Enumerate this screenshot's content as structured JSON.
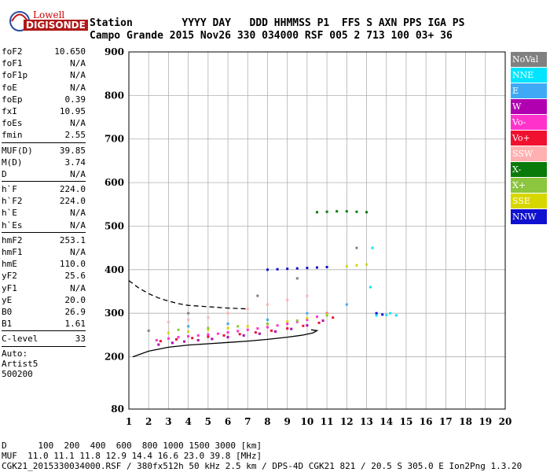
{
  "logo": {
    "line1": "Lowell",
    "line2": "DIGISONDE"
  },
  "header": {
    "row1": "Station        YYYY DAY   DDD HHMMSS P1  FFS S AXN PPS IGA PS",
    "row2": "Campo Grande 2015 Nov26 330 034000 RSF 005 2 713 100 03+ 36"
  },
  "params_group1": [
    {
      "label": "foF2",
      "value": "10.650"
    },
    {
      "label": "foF1",
      "value": "N/A"
    },
    {
      "label": "foF1p",
      "value": "N/A"
    },
    {
      "label": "foE",
      "value": "N/A"
    },
    {
      "label": "foEp",
      "value": "0.39"
    },
    {
      "label": "fxI",
      "value": "10.95"
    },
    {
      "label": "foEs",
      "value": "N/A"
    },
    {
      "label": "fmin",
      "value": "2.55"
    }
  ],
  "params_group2": [
    {
      "label": "MUF(D)",
      "value": "39.85"
    },
    {
      "label": "M(D)",
      "value": "3.74"
    },
    {
      "label": "D",
      "value": "N/A"
    }
  ],
  "params_group3": [
    {
      "label": "h`F",
      "value": "224.0"
    },
    {
      "label": "h`F2",
      "value": "224.0"
    },
    {
      "label": "h`E",
      "value": "N/A"
    },
    {
      "label": "h`Es",
      "value": "N/A"
    }
  ],
  "params_group4": [
    {
      "label": "hmF2",
      "value": "253.1"
    },
    {
      "label": "hmF1",
      "value": "N/A"
    },
    {
      "label": "hmE",
      "value": "110.0"
    },
    {
      "label": "yF2",
      "value": "25.6"
    },
    {
      "label": "yF1",
      "value": "N/A"
    },
    {
      "label": "yE",
      "value": "20.0"
    },
    {
      "label": "B0",
      "value": "26.9"
    },
    {
      "label": "B1",
      "value": "1.61"
    }
  ],
  "clevel": {
    "label": "C-level",
    "value": "33"
  },
  "auto": {
    "line1": "Auto:",
    "line2": "Artist5",
    "line3": "500200"
  },
  "legend": [
    {
      "label": "NoVal",
      "color": "#808080"
    },
    {
      "label": "NNE",
      "color": "#00e5ff"
    },
    {
      "label": "E",
      "color": "#3fa9f5"
    },
    {
      "label": "W",
      "color": "#b000b0"
    },
    {
      "label": "Vo-",
      "color": "#ff33cc"
    },
    {
      "label": "Vo+",
      "color": "#f01030"
    },
    {
      "label": "SSW",
      "color": "#ffb0b0"
    },
    {
      "label": "X-",
      "color": "#0a7a0a"
    },
    {
      "label": "X+",
      "color": "#8cc63f"
    },
    {
      "label": "SSE",
      "color": "#d7d700"
    },
    {
      "label": "NNW",
      "color": "#1010d0"
    }
  ],
  "footer": {
    "line1": "D      100  200  400  600  800 1000 1500 3000 [km]",
    "line2": "MUF  11.0 11.1 11.8 12.9 14.4 16.6 23.0 39.8 [MHz]",
    "line3": "CGK21_2015330034000.RSF / 380fx512h 50 kHz 2.5 km / DPS-4D CGK21 821 / 20.5 S 305.0 E Ion2Png 1.3.20"
  },
  "chart_data": {
    "type": "scatter",
    "title": "",
    "xlabel": "",
    "ylabel": "",
    "xlim": [
      1,
      20
    ],
    "ylim": [
      80,
      900
    ],
    "x_ticks": [
      1,
      2,
      3,
      4,
      5,
      6,
      7,
      8,
      9,
      10,
      11,
      12,
      13,
      14,
      15,
      16,
      17,
      18,
      19,
      20
    ],
    "y_ticks": [
      80,
      200,
      300,
      400,
      500,
      600,
      700,
      800,
      900
    ],
    "grid": true,
    "series": [
      {
        "name": "Vo-",
        "x": [
          2.4,
          3.0,
          3.5,
          4.0,
          4.5,
          5.0,
          5.5,
          6.0,
          6.5,
          7.0,
          7.5,
          8.0,
          8.5,
          9.0,
          9.5,
          10.0,
          10.5,
          11.0
        ],
        "y": [
          238,
          242,
          245,
          247,
          249,
          251,
          253,
          256,
          259,
          262,
          265,
          268,
          272,
          276,
          280,
          285,
          292,
          300
        ]
      },
      {
        "name": "W",
        "x": [
          2.5,
          3.2,
          3.8,
          4.5,
          5.2,
          6.0,
          6.8,
          7.6,
          8.4,
          9.2,
          10.0,
          10.8
        ],
        "y": [
          228,
          232,
          235,
          238,
          241,
          245,
          249,
          253,
          258,
          264,
          272,
          283
        ]
      },
      {
        "name": "Vo+",
        "x": [
          2.6,
          3.4,
          4.2,
          5.0,
          5.8,
          6.6,
          7.4,
          8.2,
          9.0,
          9.8,
          10.6,
          11.3
        ],
        "y": [
          236,
          240,
          243,
          246,
          249,
          252,
          256,
          260,
          265,
          271,
          278,
          290
        ]
      },
      {
        "name": "SSE",
        "x": [
          3.0,
          4.0,
          5.0,
          6.0,
          7.0,
          8.0,
          9.0,
          10.0,
          11.0,
          12.0,
          12.5,
          13.0
        ],
        "y": [
          255,
          258,
          262,
          266,
          270,
          275,
          281,
          289,
          298,
          408,
          410,
          412
        ]
      },
      {
        "name": "NNW",
        "x": [
          8.0,
          8.5,
          9.0,
          9.5,
          10.0,
          10.5,
          11.0,
          13.5,
          13.8
        ],
        "y": [
          400,
          401,
          402,
          403,
          404,
          405,
          406,
          300,
          297
        ]
      },
      {
        "name": "X-",
        "x": [
          10.5,
          11.0,
          11.5,
          12.0,
          12.5,
          13.0
        ],
        "y": [
          532,
          533,
          534,
          534,
          533,
          532
        ]
      },
      {
        "name": "NNE",
        "x": [
          13.5,
          14.0,
          14.2,
          14.5,
          13.2,
          13.3
        ],
        "y": [
          295,
          296,
          300,
          295,
          360,
          450
        ]
      },
      {
        "name": "SSW",
        "x": [
          3.0,
          4.0,
          5.0,
          6.0,
          7.0,
          8.0,
          9.0,
          10.0
        ],
        "y": [
          280,
          285,
          290,
          300,
          310,
          320,
          330,
          340
        ]
      },
      {
        "name": "X+",
        "x": [
          3.5,
          5.0,
          6.5,
          8.0,
          9.5,
          11.0
        ],
        "y": [
          262,
          266,
          270,
          276,
          283,
          295
        ]
      },
      {
        "name": "E",
        "x": [
          4.0,
          6.0,
          8.0,
          10.0,
          12.0
        ],
        "y": [
          270,
          276,
          285,
          300,
          320
        ]
      },
      {
        "name": "NoVal",
        "x": [
          2.0,
          4.0,
          7.5,
          9.5,
          12.5
        ],
        "y": [
          260,
          300,
          340,
          380,
          450
        ]
      }
    ],
    "profile_lines": [
      {
        "style": "solid",
        "x": [
          1.2,
          2.0,
          3.0,
          4.0,
          5.0,
          6.0,
          7.0,
          8.0,
          9.0,
          9.8,
          10.3,
          10.5,
          10.2
        ],
        "y": [
          200,
          213,
          222,
          227,
          230,
          233,
          236,
          240,
          245,
          250,
          255,
          260,
          262
        ]
      },
      {
        "style": "dashed",
        "x": [
          1.0,
          1.5,
          2.0,
          2.5,
          3.0,
          3.5,
          4.0,
          5.0,
          6.0,
          7.0
        ],
        "y": [
          375,
          358,
          345,
          335,
          328,
          322,
          318,
          315,
          312,
          310
        ]
      }
    ]
  }
}
